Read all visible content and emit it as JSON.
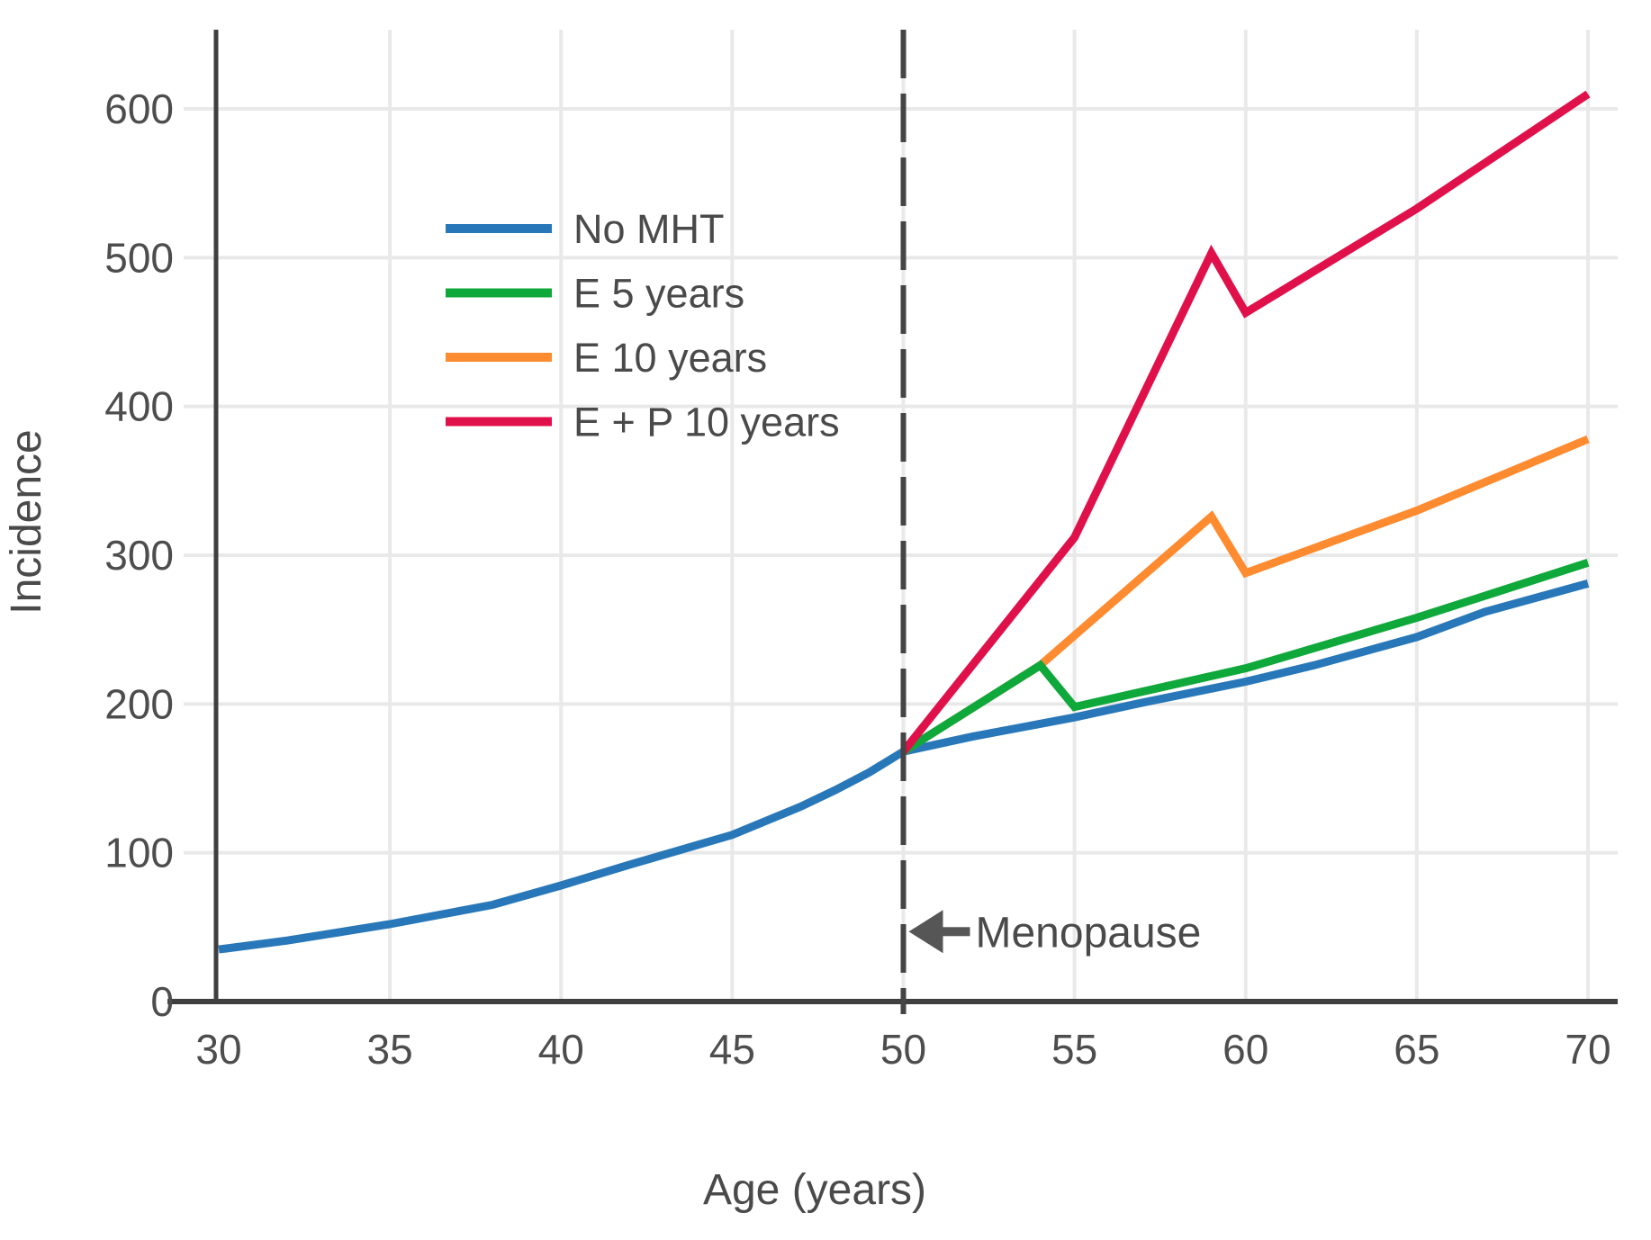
{
  "figure": {
    "background": "#ffffff",
    "text_color": "#4a4a4a",
    "tick_color": "#4d4d4d",
    "grid_color": "#e9e9e9",
    "axis_color": "#3f3f3f",
    "dashed_line_color": "#454545",
    "arrow_color": "#565656"
  },
  "chart_data": {
    "type": "line",
    "title": "",
    "xlabel": "Age (years)",
    "ylabel": "Incidence",
    "xlim": [
      29.9,
      70.9
    ],
    "ylim": [
      0,
      653
    ],
    "x_ticks": [
      30,
      35,
      40,
      45,
      50,
      55,
      60,
      65,
      70
    ],
    "y_ticks": [
      0,
      100,
      200,
      300,
      400,
      500,
      600
    ],
    "grid": true,
    "legend_position": "upper-left-inside",
    "series": [
      {
        "name": "No MHT",
        "color": "#2878b9",
        "z": 1,
        "points": [
          [
            30,
            35
          ],
          [
            32,
            41
          ],
          [
            35,
            52
          ],
          [
            38,
            65
          ],
          [
            40,
            78
          ],
          [
            42,
            92
          ],
          [
            45,
            112
          ],
          [
            47,
            131
          ],
          [
            48,
            142
          ],
          [
            49,
            154
          ],
          [
            50,
            168
          ],
          [
            52,
            178
          ],
          [
            55,
            191
          ],
          [
            57,
            201
          ],
          [
            60,
            215
          ],
          [
            62,
            226
          ],
          [
            65,
            245
          ],
          [
            67,
            262
          ],
          [
            70,
            281
          ]
        ]
      },
      {
        "name": "E 5 years",
        "color": "#0fa83a",
        "z": 3,
        "points": [
          [
            50,
            168
          ],
          [
            54,
            226
          ],
          [
            55,
            198
          ],
          [
            60,
            224
          ],
          [
            65,
            258
          ],
          [
            70,
            295
          ]
        ]
      },
      {
        "name": "E 10 years",
        "color": "#ff8b30",
        "z": 2,
        "points": [
          [
            50,
            168
          ],
          [
            54,
            226
          ],
          [
            59,
            326
          ],
          [
            60,
            288
          ],
          [
            65,
            330
          ],
          [
            70,
            378
          ]
        ]
      },
      {
        "name": "E + P 10 years",
        "color": "#e0114a",
        "z": 4,
        "points": [
          [
            50,
            168
          ],
          [
            55,
            312
          ],
          [
            59,
            503
          ],
          [
            60,
            463
          ],
          [
            65,
            533
          ],
          [
            70,
            610
          ]
        ]
      }
    ],
    "menopause_line": {
      "x": 50,
      "style": "dashed"
    },
    "annotations": [
      {
        "text": "Menopause",
        "arrow": "left",
        "x": 50,
        "y": 47
      }
    ]
  }
}
